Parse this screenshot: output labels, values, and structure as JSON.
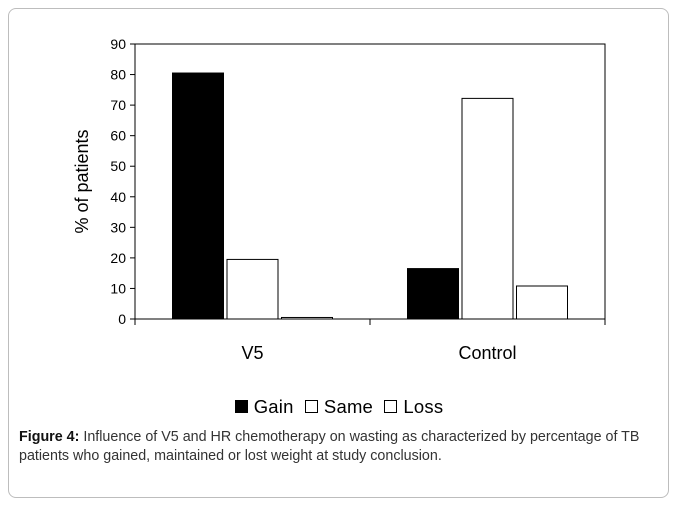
{
  "chart_data": {
    "type": "bar",
    "title": "",
    "ylabel": "% of patients",
    "xlabel": "",
    "ylim": [
      0,
      90
    ],
    "yticks": [
      0,
      10,
      20,
      30,
      40,
      50,
      60,
      70,
      80,
      90
    ],
    "categories": [
      "V5",
      "Control"
    ],
    "series": [
      {
        "name": "Gain",
        "fill": "#000000",
        "values": [
          80.5,
          16.5
        ]
      },
      {
        "name": "Same",
        "fill": "#ffffff",
        "values": [
          19.5,
          72.2
        ]
      },
      {
        "name": "Loss",
        "fill": "#ffffff",
        "values": [
          0.5,
          10.8
        ]
      }
    ],
    "legend_position": "bottom"
  },
  "caption": {
    "label": "Figure 4:",
    "text": " Influence of V5 and HR chemotherapy on wasting as characterized by percentage of TB patients who gained, maintained or lost weight at study conclusion."
  }
}
